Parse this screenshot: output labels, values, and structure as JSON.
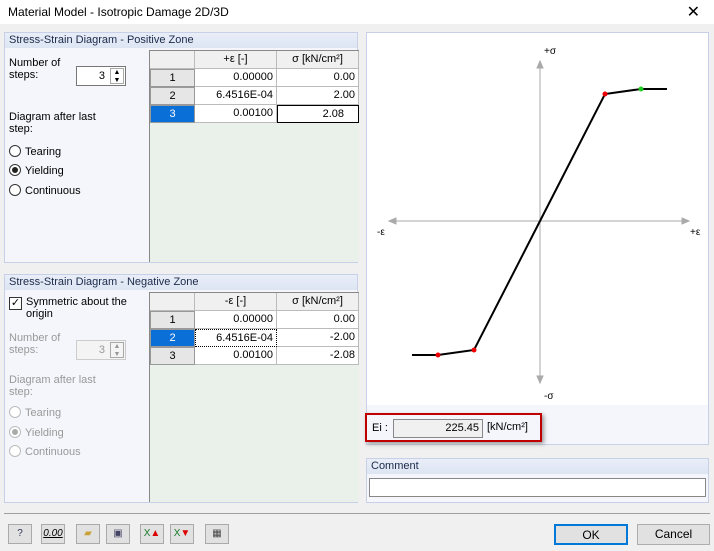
{
  "window": {
    "title": "Material Model - Isotropic Damage 2D/3D",
    "close": "✕"
  },
  "positive": {
    "header": "Stress-Strain Diagram - Positive Zone",
    "steps_label": "Number of steps:",
    "steps": "3",
    "after_label": "Diagram after last step:",
    "options": [
      "Tearing",
      "Yielding",
      "Continuous"
    ],
    "selected": "Yielding",
    "col_eps": "+ε [-]",
    "col_sigma": "σ [kN/cm²]",
    "rows": [
      [
        "1",
        "0.00000",
        "0.00"
      ],
      [
        "2",
        "6.4516E-04",
        "2.00"
      ],
      [
        "3",
        "0.00100",
        "2.08"
      ]
    ]
  },
  "negative": {
    "header": "Stress-Strain Diagram - Negative Zone",
    "symmetric_label": "Symmetric about the origin",
    "symmetric": true,
    "steps_label": "Number of steps:",
    "steps": "3",
    "after_label": "Diagram after last step:",
    "options": [
      "Tearing",
      "Yielding",
      "Continuous"
    ],
    "selected": "Yielding",
    "col_eps": "-ε [-]",
    "col_sigma": "σ [kN/cm²]",
    "rows": [
      [
        "1",
        "0.00000",
        "0.00"
      ],
      [
        "2",
        "6.4516E-04",
        "-2.00"
      ],
      [
        "3",
        "0.00100",
        "-2.08"
      ]
    ]
  },
  "diagram": {
    "plus_sigma": "+σ",
    "minus_sigma": "-σ",
    "plus_eps": "+ε",
    "minus_eps": "-ε"
  },
  "ei": {
    "label": "Ei :",
    "value": "225.45",
    "unit": "[kN/cm²]"
  },
  "comment": {
    "label": "Comment",
    "value": ""
  },
  "buttons": {
    "ok": "OK",
    "cancel": "Cancel",
    "tools": [
      "help",
      "units",
      "open",
      "save",
      "excel-import",
      "excel-export",
      "calculator"
    ],
    "units_text": "0.00"
  }
}
